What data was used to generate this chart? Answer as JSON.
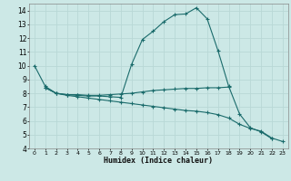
{
  "xlabel": "Humidex (Indice chaleur)",
  "bg_color": "#cce8e6",
  "grid_color": "#b8d8d6",
  "line_color": "#1a6b6b",
  "xlim": [
    -0.5,
    23.5
  ],
  "ylim": [
    4,
    14.5
  ],
  "xticks": [
    0,
    1,
    2,
    3,
    4,
    5,
    6,
    7,
    8,
    9,
    10,
    11,
    12,
    13,
    14,
    15,
    16,
    17,
    18,
    19,
    20,
    21,
    22,
    23
  ],
  "yticks": [
    4,
    5,
    6,
    7,
    8,
    9,
    10,
    11,
    12,
    13,
    14
  ],
  "line1_x": [
    0,
    1,
    2,
    3,
    4,
    5,
    6,
    7,
    8,
    9,
    10,
    11,
    12,
    13,
    14,
    15,
    16,
    17,
    18,
    19,
    20,
    21,
    22
  ],
  "line1_y": [
    10.0,
    8.5,
    8.0,
    7.9,
    7.85,
    7.8,
    7.8,
    7.75,
    7.7,
    10.1,
    11.9,
    12.5,
    13.2,
    13.7,
    13.75,
    14.2,
    13.4,
    11.1,
    8.5,
    6.5,
    5.5,
    5.2,
    4.7
  ],
  "line2_x": [
    1,
    2,
    3,
    4,
    5,
    6,
    7,
    8,
    9,
    10,
    11,
    12,
    13,
    14,
    15,
    16,
    17,
    18
  ],
  "line2_y": [
    8.4,
    8.0,
    7.9,
    7.9,
    7.85,
    7.85,
    7.9,
    7.95,
    8.0,
    8.1,
    8.2,
    8.25,
    8.3,
    8.35,
    8.35,
    8.4,
    8.4,
    8.45
  ],
  "line3_x": [
    1,
    2,
    3,
    4,
    5,
    6,
    7,
    8,
    9,
    10,
    11,
    12,
    13,
    14,
    15,
    16,
    17,
    18,
    19,
    20,
    21,
    22,
    23
  ],
  "line3_y": [
    8.4,
    8.0,
    7.85,
    7.75,
    7.65,
    7.55,
    7.45,
    7.35,
    7.25,
    7.15,
    7.05,
    6.95,
    6.85,
    6.75,
    6.7,
    6.6,
    6.45,
    6.2,
    5.75,
    5.45,
    5.25,
    4.75,
    4.5
  ]
}
